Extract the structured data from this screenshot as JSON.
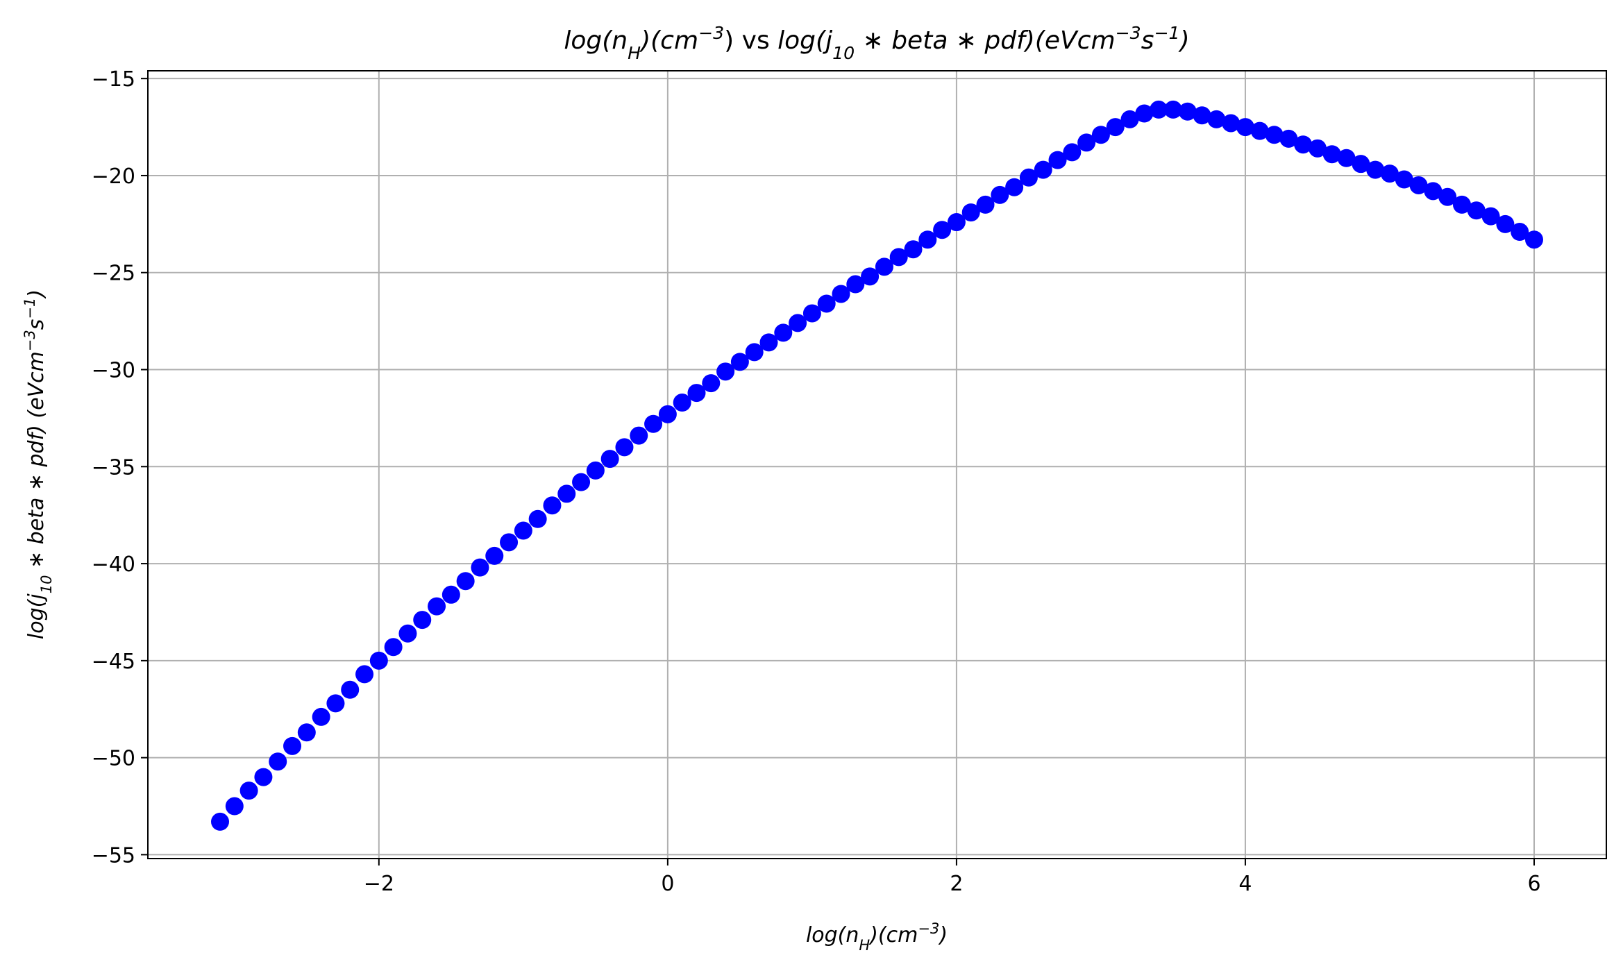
{
  "chart_data": {
    "type": "scatter",
    "title": {
      "parts": [
        {
          "t": "log(n",
          "i": true
        },
        {
          "t": "H",
          "i": true,
          "sub": true
        },
        {
          "t": ")(cm",
          "i": true
        },
        {
          "t": "−3",
          "i": true,
          "sup": true
        },
        {
          "t": ") vs ",
          "i": false
        },
        {
          "t": "log(j",
          "i": true
        },
        {
          "t": "10",
          "i": true,
          "sub": true
        },
        {
          "t": " ∗ beta ∗ pdf)(eVcm",
          "i": true
        },
        {
          "t": "−3",
          "i": true,
          "sup": true
        },
        {
          "t": "s",
          "i": true
        },
        {
          "t": "−1",
          "i": true,
          "sup": true
        },
        {
          "t": ")",
          "i": true
        }
      ]
    },
    "xlabel": {
      "parts": [
        {
          "t": "log(n",
          "i": true
        },
        {
          "t": "H",
          "i": true,
          "sub": true
        },
        {
          "t": ")(cm",
          "i": true
        },
        {
          "t": "−3",
          "i": true,
          "sup": true
        },
        {
          "t": ")",
          "i": true
        }
      ]
    },
    "ylabel": {
      "parts": [
        {
          "t": "log(j",
          "i": true
        },
        {
          "t": "10",
          "i": true,
          "sub": true
        },
        {
          "t": " ∗ beta ∗ pdf) (eVcm",
          "i": true
        },
        {
          "t": "−3",
          "i": true,
          "sup": true
        },
        {
          "t": "s",
          "i": true
        },
        {
          "t": "−1",
          "i": true,
          "sup": true
        },
        {
          "t": ")",
          "i": true
        }
      ]
    },
    "xlim": [
      -3.6,
      6.5
    ],
    "ylim": [
      -55.2,
      -14.6
    ],
    "xticks": [
      -2,
      0,
      2,
      4,
      6
    ],
    "xtick_labels": [
      "−2",
      "0",
      "2",
      "4",
      "6"
    ],
    "yticks": [
      -55,
      -50,
      -45,
      -40,
      -35,
      -30,
      -25,
      -20,
      -15
    ],
    "ytick_labels": [
      "−55",
      "−50",
      "−45",
      "−40",
      "−35",
      "−30",
      "−25",
      "−20",
      "−15"
    ],
    "grid": true,
    "marker_color": "#0000ff",
    "series": [
      {
        "x": [
          -3.1,
          -3.0,
          -2.9,
          -2.8,
          -2.7,
          -2.6,
          -2.5,
          -2.4,
          -2.3,
          -2.2,
          -2.1,
          -2.0,
          -1.9,
          -1.8,
          -1.7,
          -1.6,
          -1.5,
          -1.4,
          -1.3,
          -1.2,
          -1.1,
          -1.0,
          -0.9,
          -0.8,
          -0.7,
          -0.6,
          -0.5,
          -0.4,
          -0.3,
          -0.2,
          -0.1,
          0.0,
          0.1,
          0.2,
          0.3,
          0.4,
          0.5,
          0.6,
          0.7,
          0.8,
          0.9,
          1.0,
          1.1,
          1.2,
          1.3,
          1.4,
          1.5,
          1.6,
          1.7,
          1.8,
          1.9,
          2.0,
          2.1,
          2.2,
          2.3,
          2.4,
          2.5,
          2.6,
          2.7,
          2.8,
          2.9,
          3.0,
          3.1,
          3.2,
          3.3,
          3.4,
          3.5,
          3.6,
          3.7,
          3.8,
          3.9,
          4.0,
          4.1,
          4.2,
          4.3,
          4.4,
          4.5,
          4.6,
          4.7,
          4.8,
          4.9,
          5.0,
          5.1,
          5.2,
          5.3,
          5.4,
          5.5,
          5.6,
          5.7,
          5.8,
          5.9,
          6.0
        ],
        "y": [
          -53.3,
          -52.5,
          -51.7,
          -51.0,
          -50.2,
          -49.4,
          -48.7,
          -47.9,
          -47.2,
          -46.5,
          -45.7,
          -45.0,
          -44.3,
          -43.6,
          -42.9,
          -42.2,
          -41.6,
          -40.9,
          -40.2,
          -39.6,
          -38.9,
          -38.3,
          -37.7,
          -37.0,
          -36.4,
          -35.8,
          -35.2,
          -34.6,
          -34.0,
          -33.4,
          -32.8,
          -32.3,
          -31.7,
          -31.2,
          -30.7,
          -30.1,
          -29.6,
          -29.1,
          -28.6,
          -28.1,
          -27.6,
          -27.1,
          -26.6,
          -26.1,
          -25.6,
          -25.2,
          -24.7,
          -24.2,
          -23.8,
          -23.3,
          -22.8,
          -22.4,
          -21.9,
          -21.5,
          -21.0,
          -20.6,
          -20.1,
          -19.7,
          -19.2,
          -18.8,
          -18.3,
          -17.9,
          -17.5,
          -17.1,
          -16.8,
          -16.6,
          -16.6,
          -16.7,
          -16.9,
          -17.1,
          -17.3,
          -17.5,
          -17.7,
          -17.9,
          -18.1,
          -18.4,
          -18.6,
          -18.9,
          -19.1,
          -19.4,
          -19.7,
          -19.9,
          -20.2,
          -20.5,
          -20.8,
          -21.1,
          -21.5,
          -21.8,
          -22.1,
          -22.5,
          -22.9,
          -23.3
        ]
      }
    ]
  }
}
